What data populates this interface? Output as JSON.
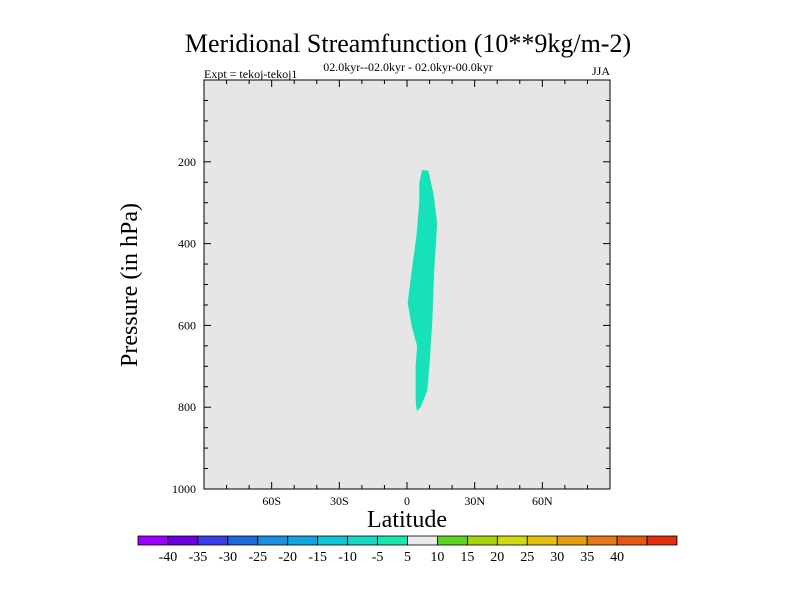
{
  "chart_data": {
    "type": "contour",
    "title": "Meridional Streamfunction (10**9kg/m-2)",
    "subtitle_left": "Expt = tekoj-tekoj1",
    "subtitle_center": "02.0kyr--02.0kyr - 02.0kyr-00.0kyr",
    "subtitle_right": "JJA",
    "xlabel": "Latitude",
    "ylabel": "Pressure (in hPa)",
    "xlim": [
      -90,
      90
    ],
    "ylim": [
      0,
      1000
    ],
    "x_ticks": [
      {
        "value": -60,
        "label": "60S"
      },
      {
        "value": -30,
        "label": "30S"
      },
      {
        "value": 0,
        "label": "0"
      },
      {
        "value": 30,
        "label": "30N"
      },
      {
        "value": 60,
        "label": "60N"
      }
    ],
    "y_ticks": [
      {
        "value": 200,
        "label": "200"
      },
      {
        "value": 400,
        "label": "400"
      },
      {
        "value": 600,
        "label": "600"
      },
      {
        "value": 800,
        "label": "800"
      },
      {
        "value": 1000,
        "label": "1000"
      }
    ],
    "background_color": "#e6e6e6",
    "filled_regions": [
      {
        "name": "-10 to -5 band",
        "color": "#17e1b9",
        "points": [
          [
            6.7,
            220
          ],
          [
            9.5,
            222
          ],
          [
            11.8,
            280
          ],
          [
            13.4,
            350
          ],
          [
            12,
            470
          ],
          [
            11.3,
            580
          ],
          [
            10.2,
            680
          ],
          [
            9,
            760
          ],
          [
            6,
            800
          ],
          [
            4.3,
            810
          ],
          [
            3.8,
            780
          ],
          [
            3.8,
            700
          ],
          [
            4.5,
            650
          ],
          [
            2,
            600
          ],
          [
            0.3,
            545
          ],
          [
            2.5,
            450
          ],
          [
            4.2,
            380
          ],
          [
            5.4,
            300
          ],
          [
            5.5,
            250
          ]
        ]
      }
    ],
    "colorbar": {
      "labels": [
        "-40",
        "-35",
        "-30",
        "-25",
        "-20",
        "-15",
        "-10",
        "-5",
        "5",
        "10",
        "15",
        "20",
        "25",
        "30",
        "35",
        "40"
      ],
      "colors": [
        "#9b00ff",
        "#6a00e0",
        "#3a3de8",
        "#1c6bd8",
        "#1d8fe2",
        "#11a5df",
        "#10c5d3",
        "#16d7c1",
        "#18e6ad",
        "#ebebeb",
        "#5bd320",
        "#a6d510",
        "#d2d810",
        "#e2c00d",
        "#e49c10",
        "#e5781a",
        "#e25a12",
        "#e12f10"
      ]
    }
  }
}
